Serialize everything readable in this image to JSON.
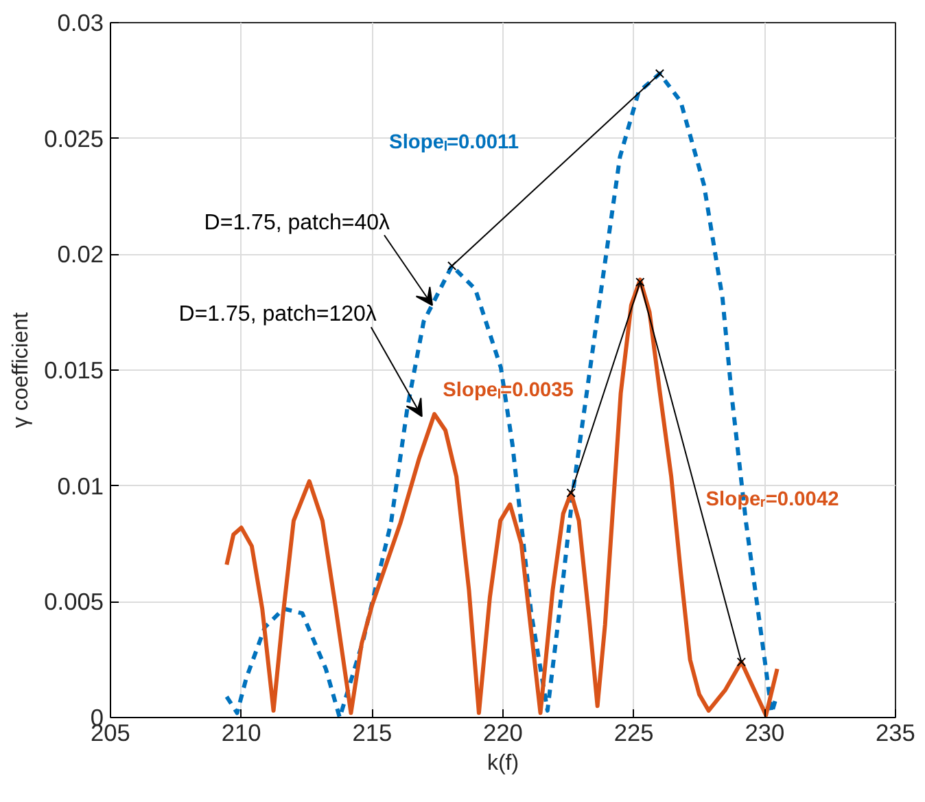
{
  "chart_data": {
    "type": "line",
    "xlabel": "k(f)",
    "ylabel": "γ coefficient",
    "xlim": [
      205,
      235
    ],
    "ylim": [
      0,
      0.03
    ],
    "xticks": [
      205,
      210,
      215,
      220,
      225,
      230,
      235
    ],
    "yticks": [
      0,
      {
        "value": 0.005,
        "label": "0.005"
      },
      {
        "value": 0.01,
        "label": "0.01"
      },
      {
        "value": 0.015,
        "label": "0.015"
      },
      {
        "value": 0.02,
        "label": "0.02"
      },
      {
        "value": 0.025,
        "label": "0.025"
      },
      {
        "value": 0.03,
        "label": "0.03"
      }
    ],
    "grid": true,
    "series": [
      {
        "color": "#0072bd",
        "line_style": "dashed",
        "marker": "none",
        "x": [
          209.44,
          209.84,
          210.19,
          210.9,
          211.62,
          212.33,
          213.23,
          213.76,
          214.65,
          215.72,
          216.35,
          216.97,
          218.05,
          218.94,
          219.92,
          220.36,
          221.08,
          221.7,
          222.15,
          222.68,
          223.58,
          224.47,
          225.18,
          225.99,
          226.79,
          227.68,
          228.39,
          228.75,
          229.29,
          230.0,
          230.27,
          230.45
        ],
        "values": [
          0.0009,
          0.0002,
          0.0017,
          0.0039,
          0.0047,
          0.0045,
          0.0021,
          0.0,
          0.0033,
          0.0084,
          0.0134,
          0.0171,
          0.0195,
          0.0185,
          0.0151,
          0.0118,
          0.0045,
          0.0003,
          0.0045,
          0.0098,
          0.0171,
          0.0242,
          0.027,
          0.0278,
          0.0266,
          0.023,
          0.0181,
          0.0138,
          0.0084,
          0.0025,
          0.0002,
          0.0009
        ]
      },
      {
        "color": "#d95319",
        "line_style": "solid",
        "marker": "none",
        "x": [
          209.44,
          209.7,
          210.0,
          210.4,
          210.8,
          211.23,
          211.6,
          212.0,
          212.6,
          213.1,
          213.6,
          214.19,
          214.6,
          215.01,
          215.5,
          216.08,
          216.8,
          217.38,
          217.8,
          218.22,
          218.7,
          219.08,
          219.5,
          219.9,
          220.27,
          220.7,
          221.1,
          221.43,
          221.9,
          222.3,
          222.6,
          222.9,
          223.3,
          223.61,
          223.9,
          224.2,
          224.5,
          224.9,
          225.24,
          225.6,
          226.0,
          226.43,
          226.8,
          227.15,
          227.5,
          227.86,
          228.5,
          229.11,
          229.6,
          230.05,
          230.48
        ],
        "values": [
          0.0066,
          0.0079,
          0.0082,
          0.0074,
          0.0047,
          0.0003,
          0.0045,
          0.0085,
          0.0102,
          0.0085,
          0.0048,
          0.0002,
          0.0032,
          0.0049,
          0.0065,
          0.0084,
          0.0112,
          0.0131,
          0.0124,
          0.0104,
          0.0055,
          0.0002,
          0.0052,
          0.0085,
          0.0092,
          0.0075,
          0.0035,
          0.0002,
          0.0055,
          0.0088,
          0.0097,
          0.0085,
          0.0042,
          0.0005,
          0.004,
          0.009,
          0.014,
          0.0178,
          0.0189,
          0.0175,
          0.014,
          0.0104,
          0.0062,
          0.0025,
          0.001,
          0.0003,
          0.0012,
          0.0024,
          0.0012,
          0.0001,
          0.0021
        ]
      },
      {
        "color": "#000000",
        "line_style": "solid",
        "marker": "cross",
        "x": [
          218.05,
          225.99
        ],
        "values": [
          0.0195,
          0.0278
        ]
      },
      {
        "color": "#000000",
        "line_style": "solid",
        "marker": "cross",
        "x": [
          222.6,
          225.24,
          229.11
        ],
        "values": [
          0.0097,
          0.0188,
          0.0024
        ]
      }
    ],
    "annotations": [
      {
        "text": "D=1.75, patch=40λ",
        "x": 217.3,
        "y": 0.0178
      },
      "D=1.75, patch=120λ",
      "Slopeₗ=0.0011",
      "Slopeₗ=0.0035",
      "Slopeᵣ=0.0042"
    ]
  }
}
